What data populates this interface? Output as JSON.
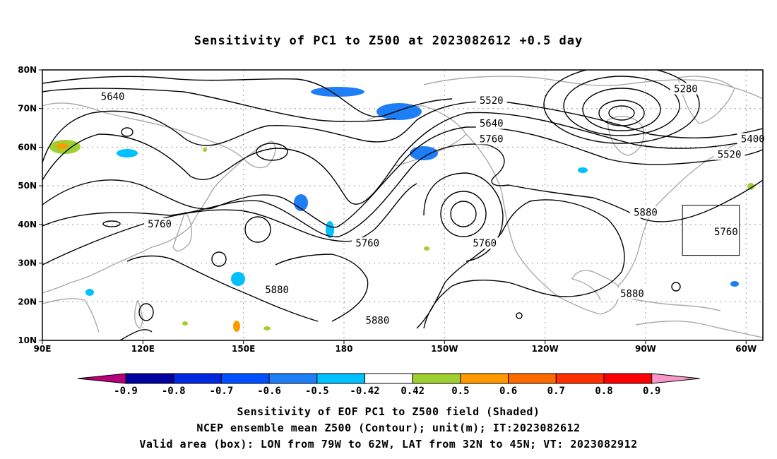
{
  "title": "Sensitivity of PC1 to Z500 at 2023082612 +0.5 day",
  "map": {
    "lat_ticks": [
      "80N",
      "70N",
      "60N",
      "50N",
      "40N",
      "30N",
      "20N",
      "10N"
    ],
    "lon_ticks": [
      "90E",
      "120E",
      "150E",
      "180",
      "150W",
      "120W",
      "90W",
      "60W"
    ],
    "lon_range": [
      90,
      305
    ],
    "lat_range": [
      10,
      80
    ],
    "grid": "dotted",
    "contour_labels": [
      {
        "text": "5640",
        "lon": 111,
        "lat": 73
      },
      {
        "text": "5520",
        "lon": 224,
        "lat": 72
      },
      {
        "text": "5640",
        "lon": 224,
        "lat": 66
      },
      {
        "text": "5760",
        "lon": 224,
        "lat": 62
      },
      {
        "text": "5280",
        "lon": 282,
        "lat": 75
      },
      {
        "text": "5400",
        "lon": 302,
        "lat": 62
      },
      {
        "text": "5520",
        "lon": 295,
        "lat": 58
      },
      {
        "text": "5760",
        "lon": 125,
        "lat": 40
      },
      {
        "text": "5760",
        "lon": 187,
        "lat": 35
      },
      {
        "text": "5760",
        "lon": 222,
        "lat": 35
      },
      {
        "text": "5880",
        "lon": 160,
        "lat": 23
      },
      {
        "text": "5880",
        "lon": 190,
        "lat": 15
      },
      {
        "text": "5880",
        "lon": 270,
        "lat": 43
      },
      {
        "text": "5880",
        "lon": 266,
        "lat": 22
      },
      {
        "text": "5760",
        "lon": 294,
        "lat": 38
      }
    ],
    "valid_box": {
      "lon": [
        281,
        298
      ],
      "lat": [
        32,
        45
      ]
    }
  },
  "colorbar": {
    "labels": [
      "-0.9",
      "-0.8",
      "-0.7",
      "-0.6",
      "-0.5",
      "-0.42",
      "0.42",
      "0.5",
      "0.6",
      "0.7",
      "0.8",
      "0.9"
    ],
    "colors": [
      "#b8007a",
      "#0000a0",
      "#0028e0",
      "#0050ff",
      "#1e7ef5",
      "#00c0ff",
      "#ffffff",
      "#a0d030",
      "#ff9900",
      "#ff6a00",
      "#ff3000",
      "#ff0000",
      "#f898c8"
    ]
  },
  "caption": {
    "line1": "Sensitivity of EOF PC1 to Z500 field (Shaded)",
    "line2": "NCEP ensemble mean Z500 (Contour); unit(m); IT:2023082612",
    "line3": "Valid area (box): LON from 79W to 62W, LAT from 32N to 45N; VT: 2023082912"
  }
}
